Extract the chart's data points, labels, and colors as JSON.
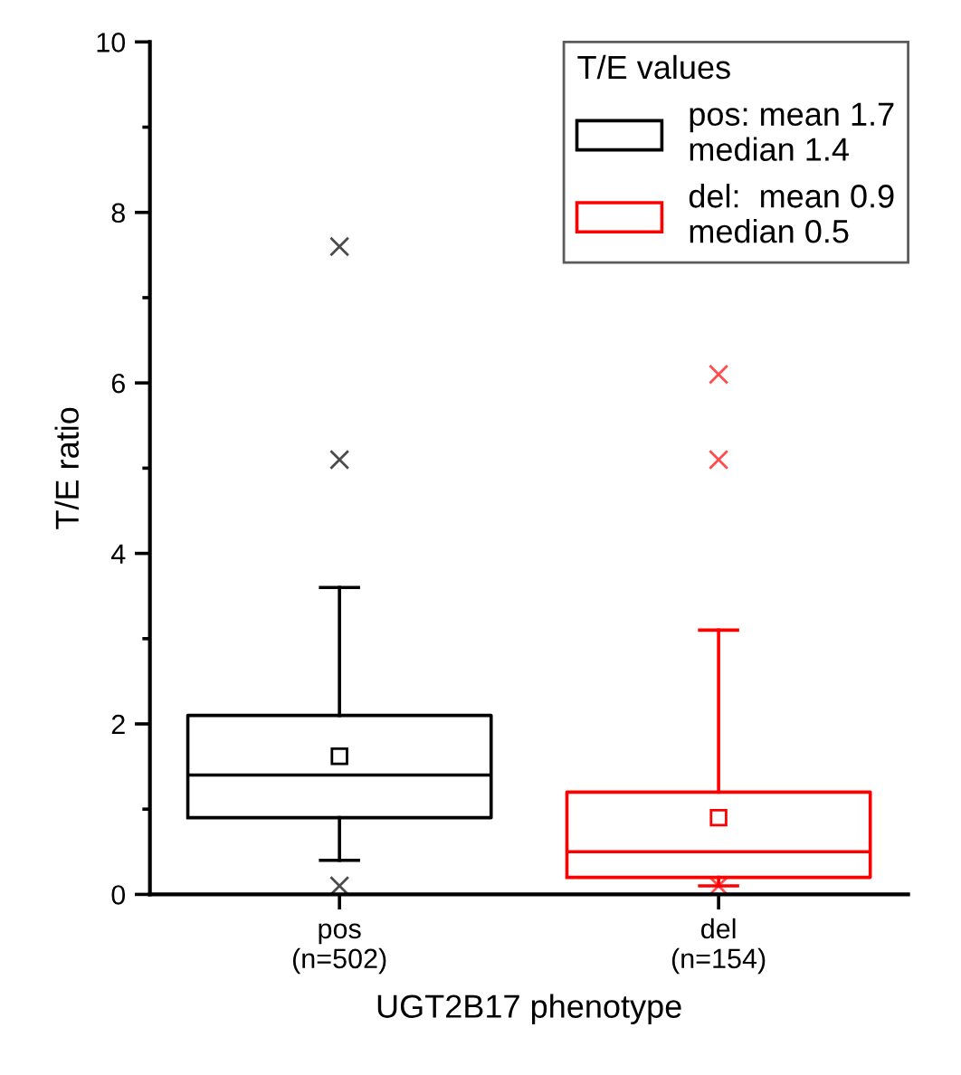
{
  "chart_data": {
    "type": "box",
    "xlabel": "UGT2B17 phenotype",
    "ylabel": "T/E ratio",
    "legend_title": "T/E values",
    "categories": [
      "pos\n(n=502)",
      "del\n(n=154)"
    ],
    "series": [
      {
        "name": "pos: mean 1.7\nmedian 1.4",
        "color": "#000000",
        "boxes": [
          {
            "low": 0.4,
            "q1": 0.9,
            "median": 1.4,
            "q3": 2.1,
            "high": 3.6,
            "mean": 1.62,
            "outliers": [
              0.1,
              5.1,
              7.6
            ]
          },
          null
        ]
      },
      {
        "name": "del:  mean 0.9\nmedian 0.5",
        "color": "#ff0000",
        "boxes": [
          null,
          {
            "low": 0.1,
            "q1": 0.2,
            "median": 0.5,
            "q3": 1.2,
            "high": 3.1,
            "mean": 0.9,
            "outliers": [
              0.1,
              5.1,
              6.1
            ]
          }
        ]
      }
    ],
    "ylim": [
      0,
      10
    ],
    "yticks": [
      0,
      {
        "value": 1,
        "label": null
      },
      2,
      {
        "value": 3,
        "label": null
      },
      4,
      {
        "value": 5,
        "label": null
      },
      6,
      {
        "value": 7,
        "label": null
      },
      8,
      {
        "value": 9,
        "label": null
      },
      10
    ],
    "grid": false,
    "legend": "top right"
  }
}
